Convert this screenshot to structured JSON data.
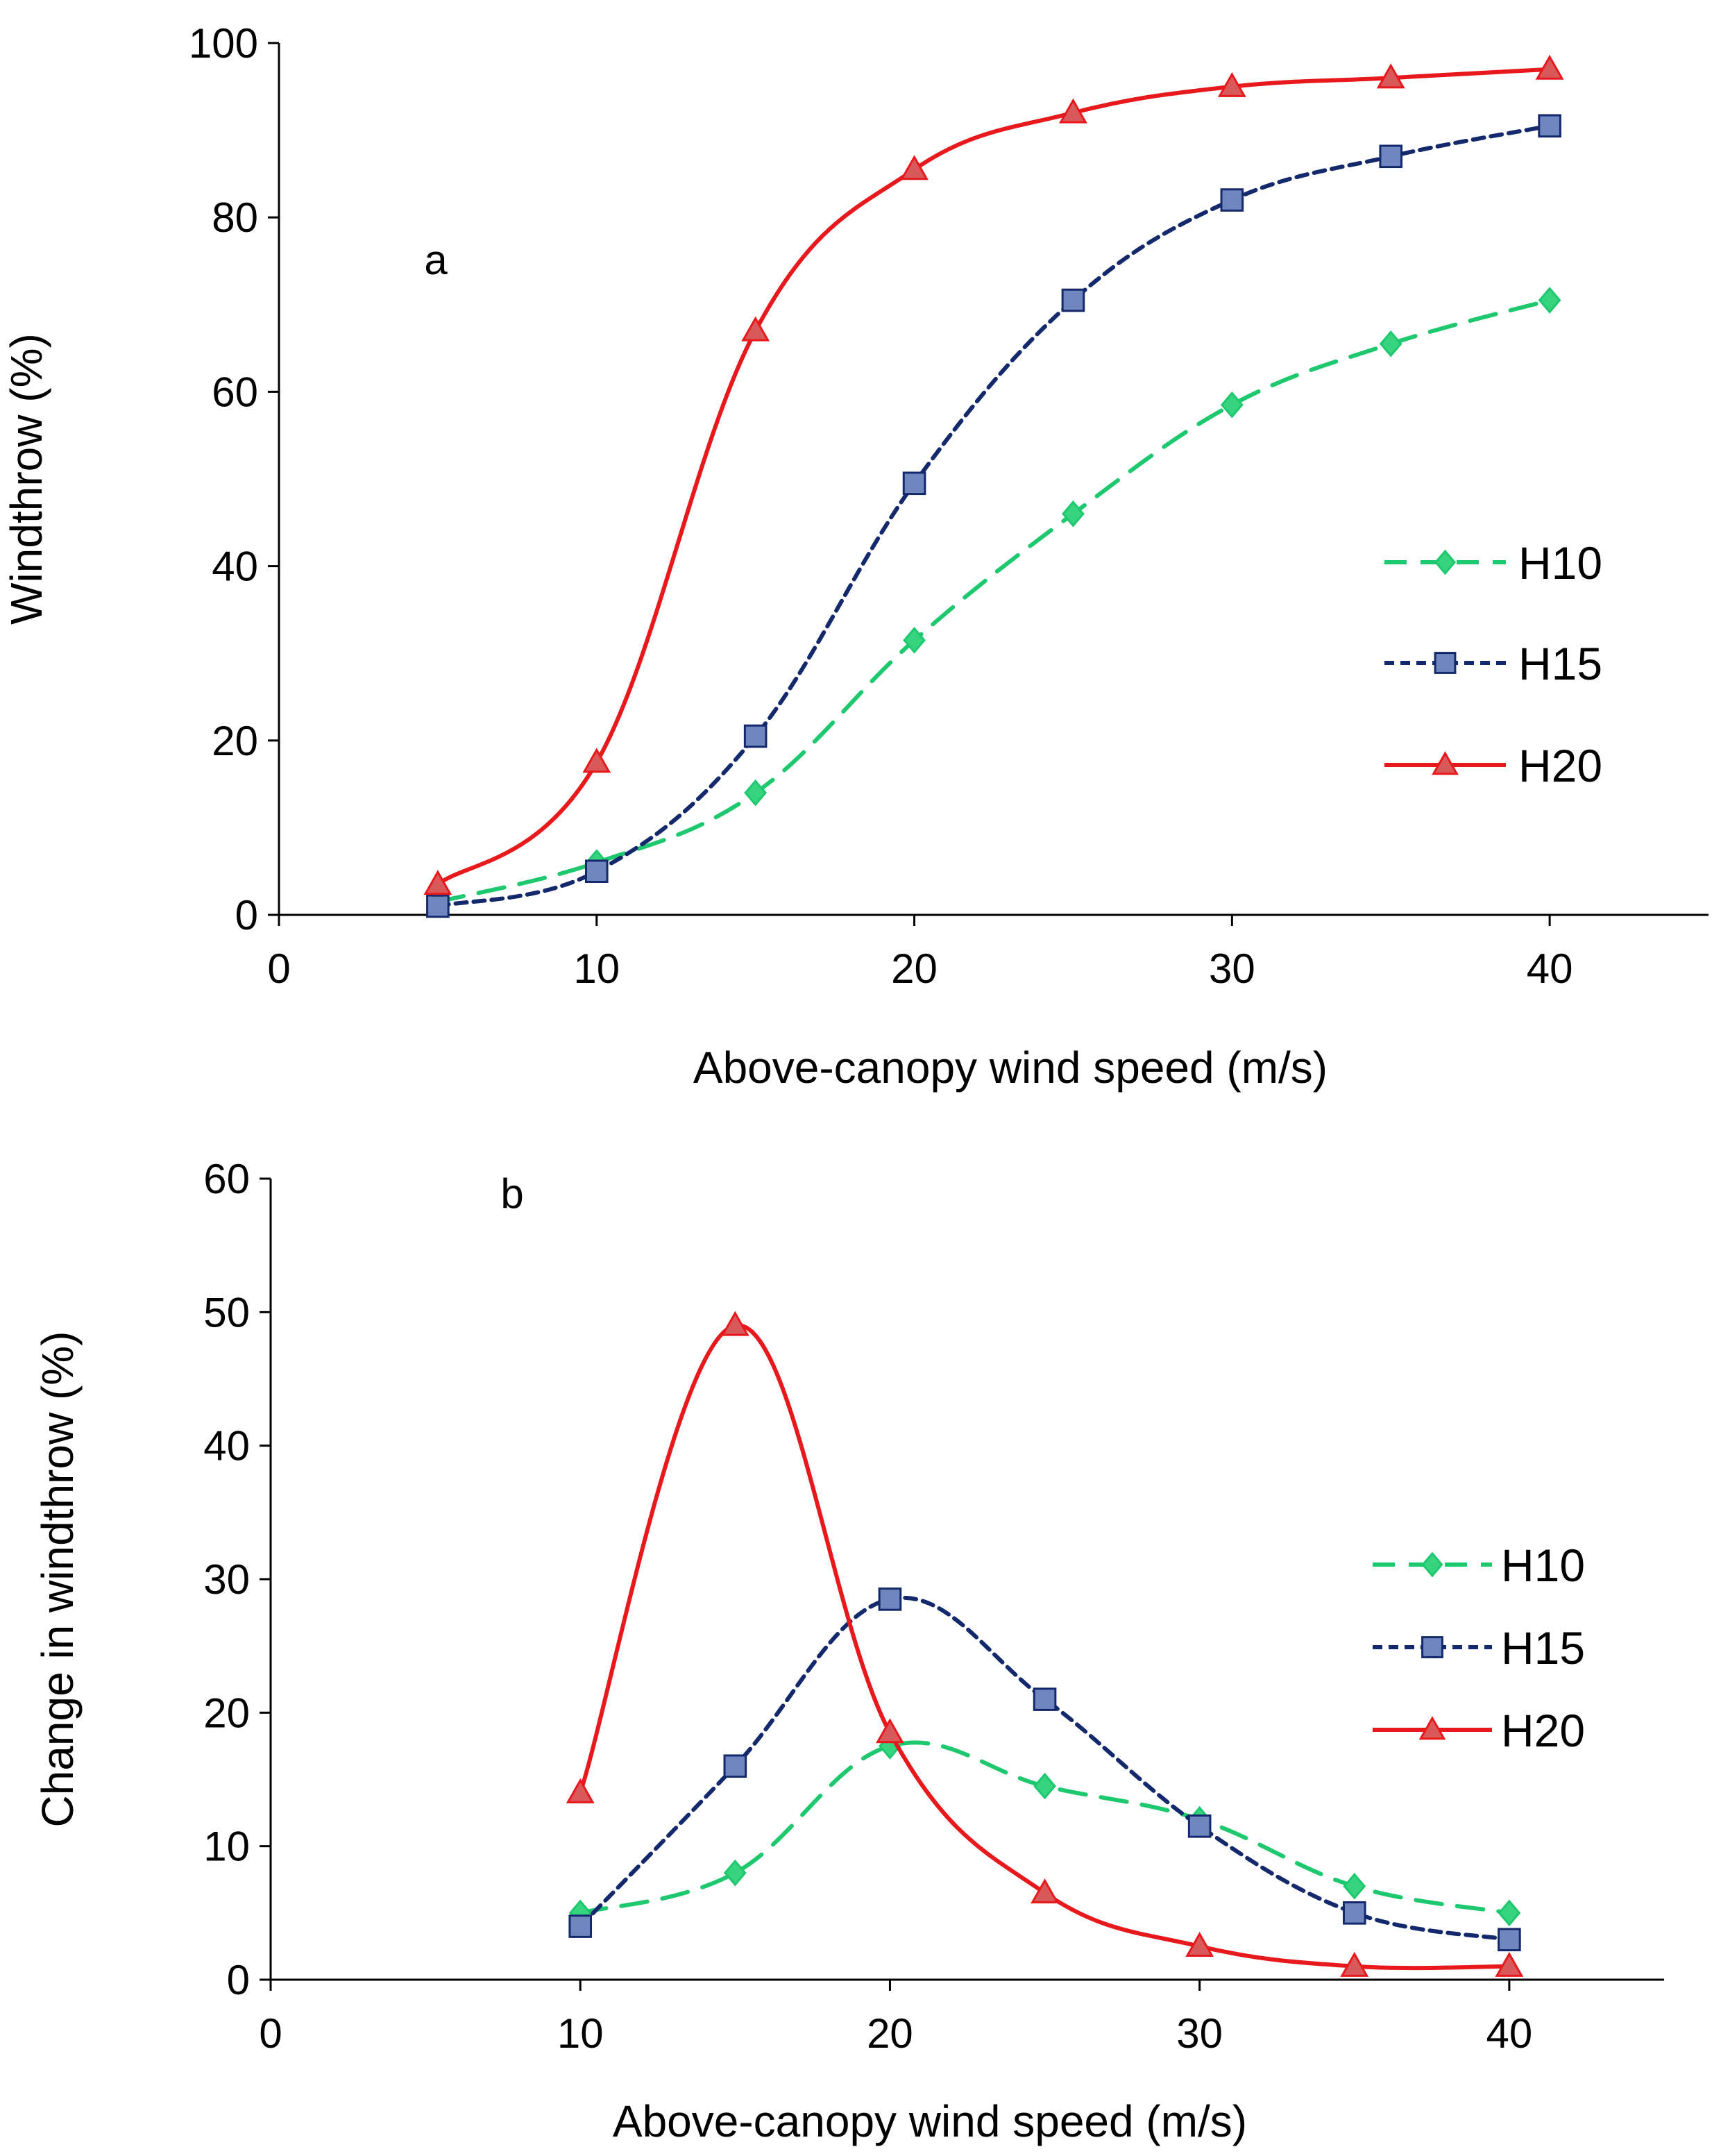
{
  "series_styles": {
    "H10": {
      "color": "#1ec86e",
      "marker_fill": "#37d47f",
      "dash": "dashed",
      "marker": "diamond"
    },
    "H15": {
      "color": "#13296b",
      "marker_fill": "#6f86bf",
      "dash": "dotted",
      "marker": "square"
    },
    "H20": {
      "color": "#e8191c",
      "marker_fill": "#d9595b",
      "dash": "solid",
      "marker": "triangle"
    }
  },
  "chart_data": [
    {
      "id": "a",
      "type": "line",
      "panel_label": "a",
      "title": "",
      "xlabel": "Above-canopy wind speed (m/s)",
      "ylabel": "Windthrow (%)",
      "xlim": [
        0,
        45
      ],
      "ylim": [
        0,
        100
      ],
      "xticks": [
        0,
        10,
        20,
        30,
        40
      ],
      "yticks": [
        0,
        20,
        40,
        60,
        80,
        100
      ],
      "grid": false,
      "legend_position": "right",
      "series": [
        {
          "name": "H10",
          "x": [
            5,
            10,
            15,
            20,
            25,
            30,
            35,
            40
          ],
          "y": [
            1.5,
            6,
            14,
            31.5,
            46,
            58.5,
            65.5,
            70.5
          ]
        },
        {
          "name": "H15",
          "x": [
            5,
            10,
            15,
            20,
            25,
            30,
            35,
            40
          ],
          "y": [
            1,
            5,
            20.5,
            49.5,
            70.5,
            82,
            87,
            90.5
          ]
        },
        {
          "name": "H20",
          "x": [
            5,
            10,
            15,
            20,
            25,
            30,
            35,
            40
          ],
          "y": [
            3.5,
            17.5,
            67,
            85.5,
            92,
            95,
            96,
            97
          ]
        }
      ]
    },
    {
      "id": "b",
      "type": "line",
      "panel_label": "b",
      "title": "",
      "xlabel": "Above-canopy wind speed (m/s)",
      "ylabel": "Change in windthrow (%)",
      "xlim": [
        0,
        45
      ],
      "ylim": [
        0,
        60
      ],
      "xticks": [
        0,
        10,
        20,
        30,
        40
      ],
      "yticks": [
        0,
        10,
        20,
        30,
        40,
        50,
        60
      ],
      "grid": false,
      "legend_position": "right",
      "series": [
        {
          "name": "H10",
          "x": [
            10,
            15,
            20,
            25,
            30,
            35,
            40
          ],
          "y": [
            5,
            8,
            17.5,
            14.5,
            12,
            7,
            5
          ]
        },
        {
          "name": "H15",
          "x": [
            10,
            15,
            20,
            25,
            30,
            35,
            40
          ],
          "y": [
            4,
            16,
            28.5,
            21,
            11.5,
            5,
            3
          ]
        },
        {
          "name": "H20",
          "x": [
            10,
            15,
            20,
            25,
            30,
            35,
            40
          ],
          "y": [
            14,
            49,
            18.5,
            6.5,
            2.5,
            1,
            1
          ]
        }
      ]
    }
  ]
}
